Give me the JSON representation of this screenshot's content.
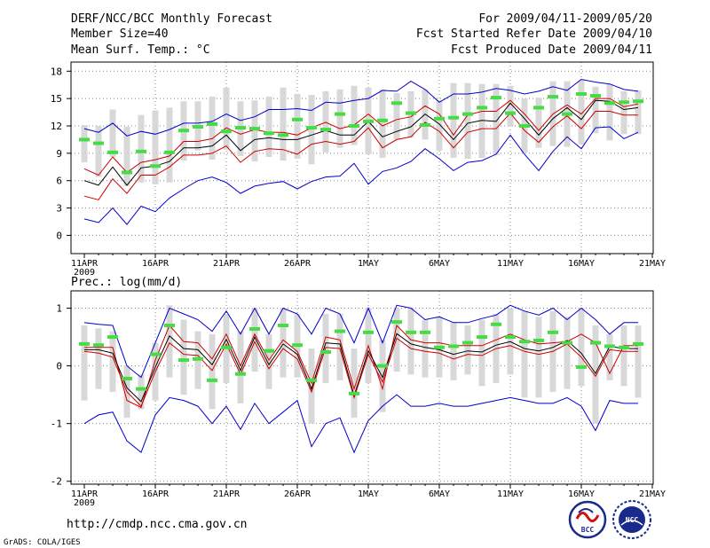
{
  "header": {
    "title": "DERF/NCC/BCC Monthly Forecast",
    "member_size": "Member Size=40",
    "period": "For 2009/04/11-2009/05/20",
    "fcst_started": "Fcst Started Refer Date 2009/04/10",
    "fcst_produced": "Fcst Produced Date 2009/04/11"
  },
  "footer": {
    "url": "http://cmdp.ncc.cma.gov.cn",
    "grads_credit": "GrADS: COLA/IGES",
    "logo_bcc_text": "BCC",
    "logo_ncc_text": "NCC"
  },
  "colors": {
    "envelope": "#0000cc",
    "spread": "#cc0000",
    "mean": "#000000",
    "box": "#d8d8d8",
    "marker": "#44dd44",
    "grid": "#888888"
  },
  "chart_data": [
    {
      "type": "line",
      "id": "temperature",
      "title": "Mean Surf. Temp.: °C",
      "x_tick_labels": [
        "11APR",
        "16APR",
        "21APR",
        "26APR",
        "1MAY",
        "6MAY",
        "11MAY",
        "16MAY",
        "21MAY"
      ],
      "x_tick_days": [
        0,
        5,
        10,
        15,
        20,
        25,
        30,
        35,
        40
      ],
      "x_year_label": "2009",
      "y_ticks": [
        0,
        3,
        6,
        9,
        12,
        15,
        18
      ],
      "ylim": [
        -2,
        19
      ],
      "grid": true,
      "days": [
        0,
        1,
        2,
        3,
        4,
        5,
        6,
        7,
        8,
        9,
        10,
        11,
        12,
        13,
        14,
        15,
        16,
        17,
        18,
        19,
        20,
        21,
        22,
        23,
        24,
        25,
        26,
        27,
        28,
        29,
        30,
        31,
        32,
        33,
        34,
        35,
        36,
        37,
        38,
        39
      ],
      "series": [
        {
          "name": "max",
          "color": "#0000cc",
          "values": [
            11.7,
            11.3,
            12.3,
            10.9,
            11.4,
            11.1,
            11.6,
            12.3,
            12.3,
            12.5,
            13.3,
            12.6,
            13.0,
            13.8,
            13.8,
            13.9,
            13.7,
            14.6,
            14.5,
            14.8,
            15.0,
            15.9,
            15.8,
            16.9,
            16.0,
            14.6,
            15.5,
            15.5,
            15.7,
            16.1,
            15.9,
            15.5,
            15.8,
            16.3,
            15.9,
            17.1,
            16.8,
            16.6,
            16.0,
            15.8
          ]
        },
        {
          "name": "upper",
          "color": "#cc0000",
          "values": [
            7.3,
            6.6,
            8.6,
            6.9,
            8.0,
            8.3,
            8.7,
            10.3,
            10.3,
            10.6,
            11.8,
            11.1,
            11.6,
            11.3,
            11.3,
            11.0,
            11.8,
            12.4,
            11.7,
            12.1,
            13.3,
            12.0,
            12.7,
            13.0,
            14.2,
            13.3,
            11.0,
            13.2,
            13.6,
            13.6,
            14.8,
            13.3,
            11.5,
            13.3,
            14.3,
            13.3,
            15.0,
            15.0,
            14.1,
            14.4
          ]
        },
        {
          "name": "mean",
          "color": "#000000",
          "values": [
            6.0,
            5.5,
            7.5,
            5.5,
            7.4,
            7.6,
            8.1,
            9.6,
            9.6,
            9.8,
            11.0,
            9.3,
            10.5,
            10.7,
            10.5,
            10.5,
            11.0,
            11.5,
            11.0,
            11.0,
            12.5,
            10.8,
            11.4,
            11.9,
            13.3,
            12.2,
            10.5,
            12.3,
            12.6,
            12.5,
            14.5,
            12.8,
            11.0,
            12.8,
            14.0,
            12.7,
            14.8,
            14.7,
            13.8,
            14.0
          ]
        },
        {
          "name": "lower",
          "color": "#cc0000",
          "values": [
            4.3,
            3.9,
            6.2,
            4.6,
            6.6,
            6.6,
            7.5,
            8.8,
            8.8,
            9.0,
            9.8,
            8.0,
            9.2,
            9.5,
            9.4,
            8.9,
            10.0,
            10.3,
            10.0,
            10.3,
            11.8,
            9.6,
            10.5,
            10.8,
            12.4,
            11.4,
            9.6,
            11.3,
            11.7,
            11.7,
            13.4,
            11.5,
            10.2,
            11.9,
            13.1,
            11.7,
            13.6,
            13.6,
            13.2,
            13.2
          ]
        },
        {
          "name": "min",
          "color": "#0000cc",
          "values": [
            1.8,
            1.4,
            3.0,
            1.2,
            3.2,
            2.6,
            4.1,
            5.1,
            6.0,
            6.4,
            5.8,
            4.6,
            5.4,
            5.7,
            5.9,
            5.1,
            5.9,
            6.4,
            6.5,
            7.9,
            5.6,
            7.0,
            7.4,
            8.1,
            9.5,
            8.4,
            7.1,
            8.0,
            8.2,
            8.9,
            11.0,
            8.9,
            7.1,
            9.2,
            10.8,
            9.5,
            11.8,
            11.9,
            10.6,
            11.3
          ]
        }
      ],
      "boxes": {
        "low": [
          8.0,
          6.4,
          8.6,
          5.4,
          5.8,
          5.6,
          5.8,
          8.2,
          9.3,
          8.3,
          9.4,
          8.7,
          8.1,
          8.6,
          8.2,
          8.4,
          7.8,
          9.1,
          9.6,
          9.9,
          8.9,
          8.5,
          10.5,
          10.7,
          10.5,
          9.3,
          8.5,
          8.4,
          8.5,
          8.8,
          11.9,
          9.1,
          9.6,
          9.8,
          9.7,
          10.0,
          11.2,
          10.4,
          11.1,
          11.1
        ],
        "high": [
          12.1,
          12.0,
          13.8,
          11.9,
          13.2,
          13.7,
          14.0,
          14.7,
          14.7,
          15.2,
          16.2,
          14.7,
          14.8,
          15.2,
          16.2,
          15.5,
          15.4,
          15.8,
          16.0,
          16.4,
          16.2,
          16.0,
          15.6,
          15.8,
          16.0,
          14.8,
          16.7,
          16.7,
          16.6,
          16.6,
          16.4,
          15.0,
          15.1,
          16.9,
          16.9,
          17.0,
          16.3,
          16.6,
          15.8,
          15.9
        ]
      },
      "markers": [
        10.5,
        10.1,
        9.1,
        6.9,
        9.2,
        7.6,
        9.1,
        11.5,
        11.9,
        12.2,
        11.4,
        11.8,
        11.7,
        11.2,
        11.0,
        12.7,
        11.8,
        11.6,
        13.3,
        12.0,
        12.5,
        12.6,
        14.5,
        13.4,
        12.1,
        12.8,
        12.9,
        13.3,
        14.0,
        15.1,
        13.4,
        12.0,
        14.0,
        15.2,
        13.3,
        15.5,
        15.3,
        14.5,
        14.6,
        14.7
      ]
    },
    {
      "type": "line",
      "id": "precipitation",
      "title": "Prec.: log(mm/d)",
      "x_tick_labels": [
        "11APR",
        "16APR",
        "21APR",
        "26APR",
        "1MAY",
        "6MAY",
        "11MAY",
        "16MAY",
        "21MAY"
      ],
      "x_tick_days": [
        0,
        5,
        10,
        15,
        20,
        25,
        30,
        35,
        40
      ],
      "x_year_label": "2009",
      "y_ticks": [
        -2,
        -1,
        0,
        1
      ],
      "ylim": [
        -2.05,
        1.3
      ],
      "grid": true,
      "days": [
        0,
        1,
        2,
        3,
        4,
        5,
        6,
        7,
        8,
        9,
        10,
        11,
        12,
        13,
        14,
        15,
        16,
        17,
        18,
        19,
        20,
        21,
        22,
        23,
        24,
        25,
        26,
        27,
        28,
        29,
        30,
        31,
        32,
        33,
        34,
        35,
        36,
        37,
        38,
        39
      ],
      "series": [
        {
          "name": "max",
          "color": "#0000cc",
          "values": [
            0.75,
            0.72,
            0.7,
            0.0,
            -0.2,
            0.4,
            1.0,
            0.9,
            0.8,
            0.6,
            0.95,
            0.55,
            1.0,
            0.55,
            1.0,
            0.9,
            0.55,
            1.0,
            0.9,
            0.4,
            1.0,
            0.4,
            1.05,
            1.0,
            0.8,
            0.85,
            0.75,
            0.75,
            0.82,
            0.88,
            1.05,
            0.95,
            0.88,
            1.0,
            0.8,
            1.0,
            0.8,
            0.55,
            0.75,
            0.75
          ]
        },
        {
          "name": "upper",
          "color": "#cc0000",
          "values": [
            0.32,
            0.32,
            0.32,
            -0.6,
            -0.72,
            0.1,
            0.7,
            0.42,
            0.4,
            0.12,
            0.55,
            0.0,
            0.55,
            0.1,
            0.45,
            0.25,
            -0.3,
            0.5,
            0.45,
            -0.4,
            0.35,
            -0.4,
            0.7,
            0.45,
            0.4,
            0.4,
            0.35,
            0.35,
            0.35,
            0.45,
            0.55,
            0.45,
            0.38,
            0.4,
            0.42,
            0.55,
            0.4,
            -0.13,
            0.35,
            0.35
          ]
        },
        {
          "name": "mean",
          "color": "#000000",
          "values": [
            0.28,
            0.28,
            0.22,
            -0.38,
            -0.62,
            -0.02,
            0.52,
            0.3,
            0.28,
            0.02,
            0.46,
            -0.08,
            0.5,
            0.02,
            0.38,
            0.2,
            -0.4,
            0.4,
            0.38,
            -0.52,
            0.26,
            -0.2,
            0.56,
            0.38,
            0.32,
            0.28,
            0.2,
            0.26,
            0.24,
            0.36,
            0.42,
            0.3,
            0.26,
            0.32,
            0.44,
            0.22,
            -0.13,
            0.34,
            0.3,
            0.3
          ]
        },
        {
          "name": "lower",
          "color": "#cc0000",
          "values": [
            0.25,
            0.22,
            0.15,
            -0.45,
            -0.7,
            -0.1,
            0.4,
            0.2,
            0.18,
            -0.08,
            0.38,
            -0.15,
            0.42,
            -0.05,
            0.3,
            0.12,
            -0.45,
            0.32,
            0.3,
            -0.55,
            0.2,
            -0.28,
            0.48,
            0.3,
            0.25,
            0.22,
            0.12,
            0.2,
            0.18,
            0.3,
            0.35,
            0.25,
            0.2,
            0.25,
            0.38,
            0.15,
            -0.18,
            0.28,
            0.25,
            0.25
          ]
        },
        {
          "name": "min",
          "color": "#0000cc",
          "values": [
            -1.0,
            -0.85,
            -0.8,
            -1.3,
            -1.5,
            -0.85,
            -0.55,
            -0.6,
            -0.7,
            -1.0,
            -0.7,
            -1.1,
            -0.65,
            -1.0,
            -0.8,
            -0.6,
            -1.4,
            -1.0,
            -0.9,
            -1.5,
            -0.95,
            -0.7,
            -0.5,
            -0.7,
            -0.7,
            -0.65,
            -0.7,
            -0.7,
            -0.65,
            -0.6,
            -0.55,
            -0.6,
            -0.65,
            -0.65,
            -0.55,
            -0.7,
            -1.12,
            -0.6,
            -0.65,
            -0.65
          ]
        }
      ],
      "boxes": {
        "low": [
          -0.6,
          -0.4,
          -0.45,
          -0.9,
          -0.75,
          -0.6,
          -0.2,
          -0.5,
          -0.4,
          -0.75,
          -0.3,
          -0.65,
          -0.1,
          -0.4,
          -0.2,
          -0.2,
          -1.0,
          -0.3,
          -0.25,
          -0.9,
          -0.3,
          -0.8,
          -0.1,
          -0.15,
          -0.2,
          -0.2,
          -0.25,
          -0.15,
          -0.35,
          -0.3,
          -0.15,
          -0.55,
          -0.55,
          -0.45,
          -0.4,
          -0.35,
          -1.0,
          -0.25,
          -0.35,
          -0.55
        ],
        "high": [
          0.7,
          0.65,
          0.6,
          0.0,
          -0.15,
          0.4,
          1.05,
          0.8,
          0.6,
          0.55,
          0.9,
          0.6,
          1.0,
          0.55,
          1.0,
          0.9,
          0.3,
          0.9,
          0.9,
          0.3,
          1.0,
          0.45,
          1.0,
          1.0,
          0.8,
          0.85,
          0.75,
          0.7,
          0.8,
          0.9,
          1.0,
          0.95,
          0.85,
          0.95,
          0.85,
          1.0,
          0.7,
          0.55,
          0.7,
          0.7
        ]
      },
      "markers": [
        0.38,
        0.36,
        0.5,
        -0.22,
        -0.4,
        0.2,
        0.7,
        0.1,
        0.12,
        -0.25,
        0.32,
        -0.14,
        0.64,
        0.26,
        0.7,
        0.36,
        -0.25,
        0.24,
        0.6,
        -0.48,
        0.58,
        0.0,
        0.76,
        0.58,
        0.58,
        0.32,
        0.34,
        0.4,
        0.5,
        0.72,
        0.5,
        0.42,
        0.44,
        0.58,
        0.4,
        -0.02,
        0.4,
        0.34,
        0.32,
        0.38
      ]
    }
  ]
}
